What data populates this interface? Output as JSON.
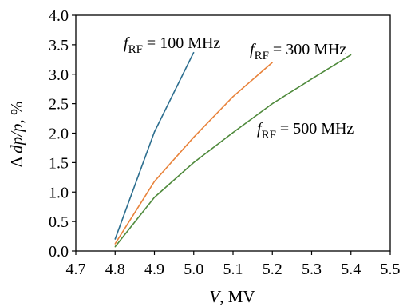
{
  "chart_data": {
    "type": "line",
    "xlabel": {
      "var": "V",
      "unit": ", MV"
    },
    "ylabel": {
      "prefix": "Δ ",
      "var": "dp/p",
      "unit": ", %"
    },
    "xlim": [
      4.7,
      5.5
    ],
    "ylim": [
      0.0,
      4.0
    ],
    "xticks": [
      "4.7",
      "4.8",
      "4.9",
      "5.0",
      "5.1",
      "5.2",
      "5.3",
      "5.4",
      "5.5"
    ],
    "yticks": [
      "0.0",
      "0.5",
      "1.0",
      "1.5",
      "2.0",
      "2.5",
      "3.0",
      "3.5",
      "4.0"
    ],
    "grid": false,
    "series": [
      {
        "name": "f_RF = 100 MHz",
        "label_main": "f",
        "label_sub": "RF",
        "label_rest": " = 100 MHz",
        "color": "#2c6e8f",
        "x": [
          4.8,
          4.9,
          5.0
        ],
        "y": [
          0.2,
          2.02,
          3.37
        ]
      },
      {
        "name": "f_RF = 300 MHz",
        "label_main": "f",
        "label_sub": "RF",
        "label_rest": " = 300 MHz",
        "color": "#e8823a",
        "x": [
          4.8,
          4.9,
          5.0,
          5.1,
          5.2
        ],
        "y": [
          0.12,
          1.18,
          1.93,
          2.62,
          3.2
        ]
      },
      {
        "name": "f_RF = 500 MHz",
        "label_main": "f",
        "label_sub": "RF",
        "label_rest": " = 500 MHz",
        "color": "#4f8a3c",
        "x": [
          4.8,
          4.9,
          5.0,
          5.1,
          5.2,
          5.3,
          5.4
        ],
        "y": [
          0.07,
          0.91,
          1.5,
          2.01,
          2.5,
          2.92,
          3.33
        ]
      }
    ]
  }
}
